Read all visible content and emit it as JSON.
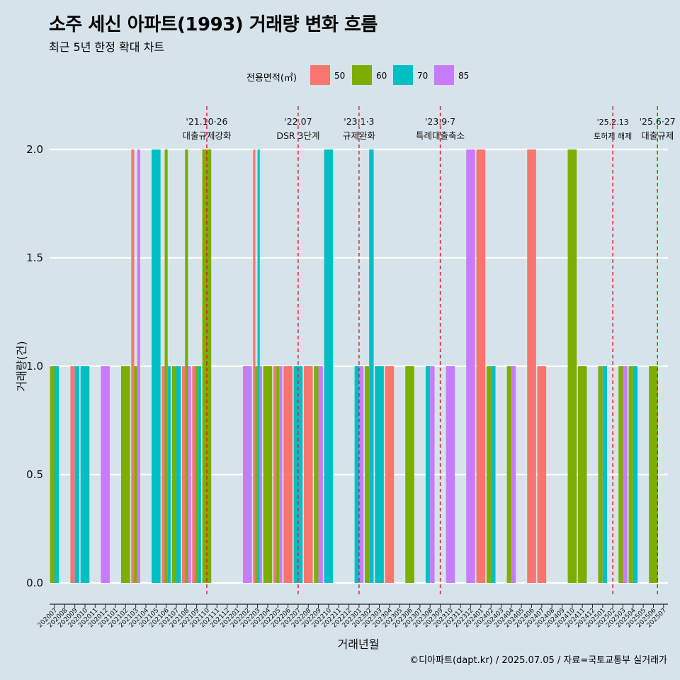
{
  "title": "소주 세신 아파트(1993) 거래량 변화 흐름",
  "subtitle": "최근 5년 한정 확대 차트",
  "caption": "©디아파트(dapt.kr) / 2025.07.05 / 자료=국토교통부 실거래가",
  "legend": {
    "title": "전용면적(㎡)",
    "items": [
      {
        "label": "50",
        "color": "#F8766D"
      },
      {
        "label": "60",
        "color": "#7CAE00"
      },
      {
        "label": "70",
        "color": "#00BFC4"
      },
      {
        "label": "85",
        "color": "#C77CFF"
      }
    ]
  },
  "chart_data": {
    "type": "bar",
    "xlabel": "거래년월",
    "ylabel": "거래량(건)",
    "ylim": [
      0,
      2
    ],
    "yticks": [
      "0.0",
      "0.5",
      "1.0",
      "1.5",
      "2.0"
    ],
    "legend_position": "top",
    "grid": true,
    "categories": [
      "202007",
      "202008",
      "202009",
      "202010",
      "202011",
      "202012",
      "202101",
      "202102",
      "202103",
      "202104",
      "202105",
      "202106",
      "202107",
      "202108",
      "202109",
      "202110",
      "202111",
      "202112",
      "202201",
      "202202",
      "202203",
      "202204",
      "202205",
      "202206",
      "202207",
      "202208",
      "202209",
      "202210",
      "202211",
      "202212",
      "202301",
      "202302",
      "202303",
      "202304",
      "202305",
      "202306",
      "202307",
      "202308",
      "202309",
      "202310",
      "202311",
      "202312",
      "202401",
      "202402",
      "202403",
      "202404",
      "202405",
      "202406",
      "202407",
      "202408",
      "202409",
      "202410",
      "202411",
      "202412",
      "202501",
      "202502",
      "202503",
      "202504",
      "202505",
      "202506",
      "202507"
    ],
    "bars": [
      {
        "month": "202007",
        "area": "60",
        "value": 1
      },
      {
        "month": "202007",
        "area": "70",
        "value": 1
      },
      {
        "month": "202009",
        "area": "50",
        "value": 1
      },
      {
        "month": "202009",
        "area": "70",
        "value": 1
      },
      {
        "month": "202010",
        "area": "70",
        "value": 1
      },
      {
        "month": "202012",
        "area": "85",
        "value": 1
      },
      {
        "month": "202102",
        "area": "60",
        "value": 1
      },
      {
        "month": "202103",
        "area": "50",
        "value": 2
      },
      {
        "month": "202103",
        "area": "60",
        "value": 1
      },
      {
        "month": "202103",
        "area": "85",
        "value": 2
      },
      {
        "month": "202105",
        "area": "70",
        "value": 2
      },
      {
        "month": "202106",
        "area": "50",
        "value": 1
      },
      {
        "month": "202106",
        "area": "60",
        "value": 2
      },
      {
        "month": "202106",
        "area": "70",
        "value": 1
      },
      {
        "month": "202107",
        "area": "60",
        "value": 1
      },
      {
        "month": "202107",
        "area": "70",
        "value": 1
      },
      {
        "month": "202108",
        "area": "50",
        "value": 1
      },
      {
        "month": "202108",
        "area": "60",
        "value": 2
      },
      {
        "month": "202108",
        "area": "85",
        "value": 1
      },
      {
        "month": "202109",
        "area": "50",
        "value": 1
      },
      {
        "month": "202109",
        "area": "60",
        "value": 1
      },
      {
        "month": "202109",
        "area": "70",
        "value": 1
      },
      {
        "month": "202110",
        "area": "60",
        "value": 2
      },
      {
        "month": "202202",
        "area": "85",
        "value": 1
      },
      {
        "month": "202203",
        "area": "50",
        "value": 2
      },
      {
        "month": "202203",
        "area": "60",
        "value": 1
      },
      {
        "month": "202203",
        "area": "70",
        "value": 2
      },
      {
        "month": "202203",
        "area": "85",
        "value": 1
      },
      {
        "month": "202204",
        "area": "60",
        "value": 1
      },
      {
        "month": "202205",
        "area": "50",
        "value": 1
      },
      {
        "month": "202205",
        "area": "60",
        "value": 1
      },
      {
        "month": "202205",
        "area": "85",
        "value": 1
      },
      {
        "month": "202206",
        "area": "50",
        "value": 1
      },
      {
        "month": "202207",
        "area": "70",
        "value": 1
      },
      {
        "month": "202208",
        "area": "50",
        "value": 1
      },
      {
        "month": "202209",
        "area": "60",
        "value": 1
      },
      {
        "month": "202209",
        "area": "85",
        "value": 1
      },
      {
        "month": "202210",
        "area": "70",
        "value": 2
      },
      {
        "month": "202301",
        "area": "70",
        "value": 1
      },
      {
        "month": "202301",
        "area": "85",
        "value": 1
      },
      {
        "month": "202302",
        "area": "60",
        "value": 1
      },
      {
        "month": "202302",
        "area": "70",
        "value": 2
      },
      {
        "month": "202303",
        "area": "70",
        "value": 1
      },
      {
        "month": "202304",
        "area": "50",
        "value": 1
      },
      {
        "month": "202306",
        "area": "60",
        "value": 1
      },
      {
        "month": "202308",
        "area": "70",
        "value": 1
      },
      {
        "month": "202308",
        "area": "85",
        "value": 1
      },
      {
        "month": "202310",
        "area": "85",
        "value": 1
      },
      {
        "month": "202312",
        "area": "85",
        "value": 2
      },
      {
        "month": "202401",
        "area": "50",
        "value": 2
      },
      {
        "month": "202402",
        "area": "60",
        "value": 1
      },
      {
        "month": "202402",
        "area": "70",
        "value": 1
      },
      {
        "month": "202404",
        "area": "60",
        "value": 1
      },
      {
        "month": "202404",
        "area": "85",
        "value": 1
      },
      {
        "month": "202406",
        "area": "50",
        "value": 2
      },
      {
        "month": "202407",
        "area": "50",
        "value": 1
      },
      {
        "month": "202410",
        "area": "60",
        "value": 2
      },
      {
        "month": "202411",
        "area": "60",
        "value": 1
      },
      {
        "month": "202501",
        "area": "60",
        "value": 1
      },
      {
        "month": "202501",
        "area": "70",
        "value": 1
      },
      {
        "month": "202503",
        "area": "60",
        "value": 1
      },
      {
        "month": "202503",
        "area": "85",
        "value": 1
      },
      {
        "month": "202504",
        "area": "60",
        "value": 1
      },
      {
        "month": "202504",
        "area": "70",
        "value": 1
      },
      {
        "month": "202506",
        "area": "60",
        "value": 1
      }
    ],
    "annotations": [
      {
        "month": "202110",
        "offset": 0,
        "lines": [
          "'21.10·26",
          "대출규제강화"
        ],
        "small": false
      },
      {
        "month": "202207",
        "offset": 0,
        "lines": [
          "'22.07",
          "DSR 3단계"
        ],
        "small": false
      },
      {
        "month": "202301",
        "offset": 0,
        "lines": [
          "'23.1·3",
          "규제완화"
        ],
        "small": false
      },
      {
        "month": "202309",
        "offset": 0,
        "lines": [
          "'23.9·7",
          "특례대출축소"
        ],
        "small": false
      },
      {
        "month": "202502",
        "offset": 0,
        "lines": [
          "'25.2.13",
          "토허제 해제"
        ],
        "small": true
      },
      {
        "month": "202506",
        "offset": 0.4,
        "lines": [
          "'25.6·27",
          "대출규제"
        ],
        "small": false
      }
    ]
  }
}
